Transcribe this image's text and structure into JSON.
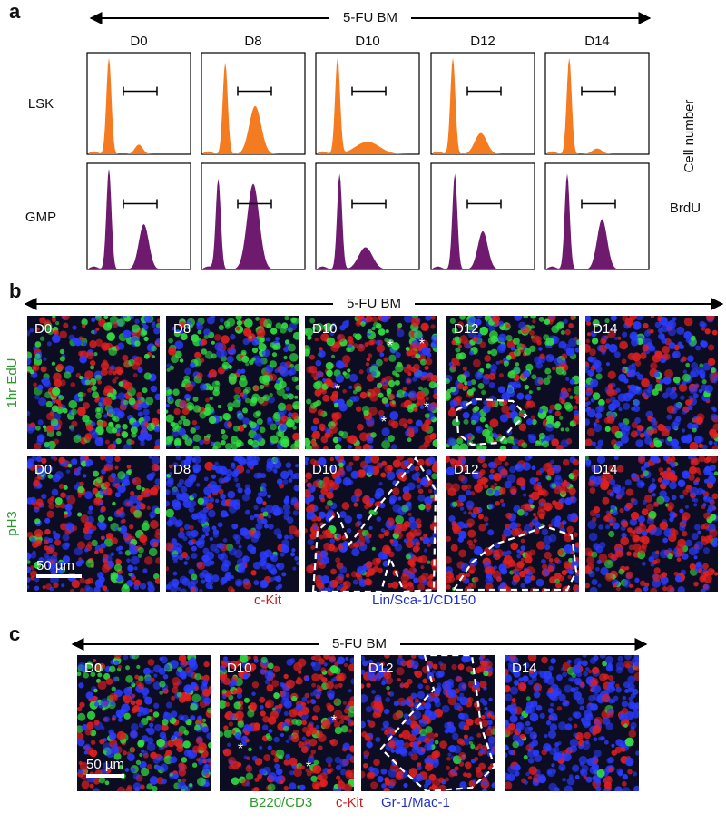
{
  "panel_a": {
    "label": "a",
    "header": "5-FU BM",
    "days": [
      "D0",
      "D8",
      "D10",
      "D12",
      "D14"
    ],
    "rows": [
      "LSK",
      "GMP"
    ],
    "y_axis_label": "Cell number",
    "x_axis_label": "BrdU"
  },
  "panel_b": {
    "label": "b",
    "header": "5-FU BM",
    "days": [
      "D0",
      "D8",
      "D10",
      "D12",
      "D14"
    ],
    "rows": [
      "1hr EdU",
      "pH3"
    ],
    "scale_bar": "50 µm",
    "marker": "*",
    "stain_labels": [
      "c-Kit",
      "Lin/Sca-1/CD150"
    ]
  },
  "panel_c": {
    "label": "c",
    "header": "5-FU BM",
    "days": [
      "D0",
      "D10",
      "D12",
      "D14"
    ],
    "scale_bar": "50 µm",
    "marker": "*",
    "stain_labels": [
      "B220/CD3",
      "c-Kit",
      "Gr-1/Mac-1"
    ]
  }
}
